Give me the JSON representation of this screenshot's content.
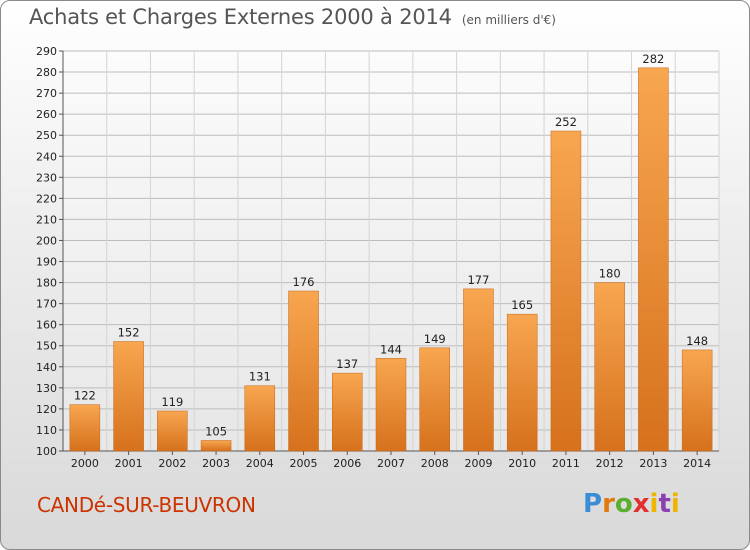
{
  "header": {
    "title": "Achats et Charges Externes 2000 à 2014",
    "subtitle": "(en milliers d'€)"
  },
  "footer": {
    "commune": "CANDé-SUR-BEUVRON",
    "logo": "Proxiti"
  },
  "colors": {
    "bar_top": "#f8a650",
    "bar_bottom": "#d6711c",
    "commune_text": "#cc3300"
  },
  "chart_data": {
    "type": "bar",
    "title": "Achats et Charges Externes 2000 à 2014",
    "subtitle": "(en milliers d'€)",
    "categories": [
      "2000",
      "2001",
      "2002",
      "2003",
      "2004",
      "2005",
      "2006",
      "2007",
      "2008",
      "2009",
      "2010",
      "2011",
      "2012",
      "2013",
      "2014"
    ],
    "values": [
      122,
      152,
      119,
      105,
      131,
      176,
      137,
      144,
      149,
      177,
      165,
      252,
      180,
      282,
      148
    ],
    "ylim": [
      100,
      290
    ],
    "yticks": [
      100,
      110,
      120,
      130,
      140,
      150,
      160,
      170,
      180,
      190,
      200,
      210,
      220,
      230,
      240,
      250,
      260,
      270,
      280,
      290
    ],
    "grid": true,
    "legend": "none"
  }
}
